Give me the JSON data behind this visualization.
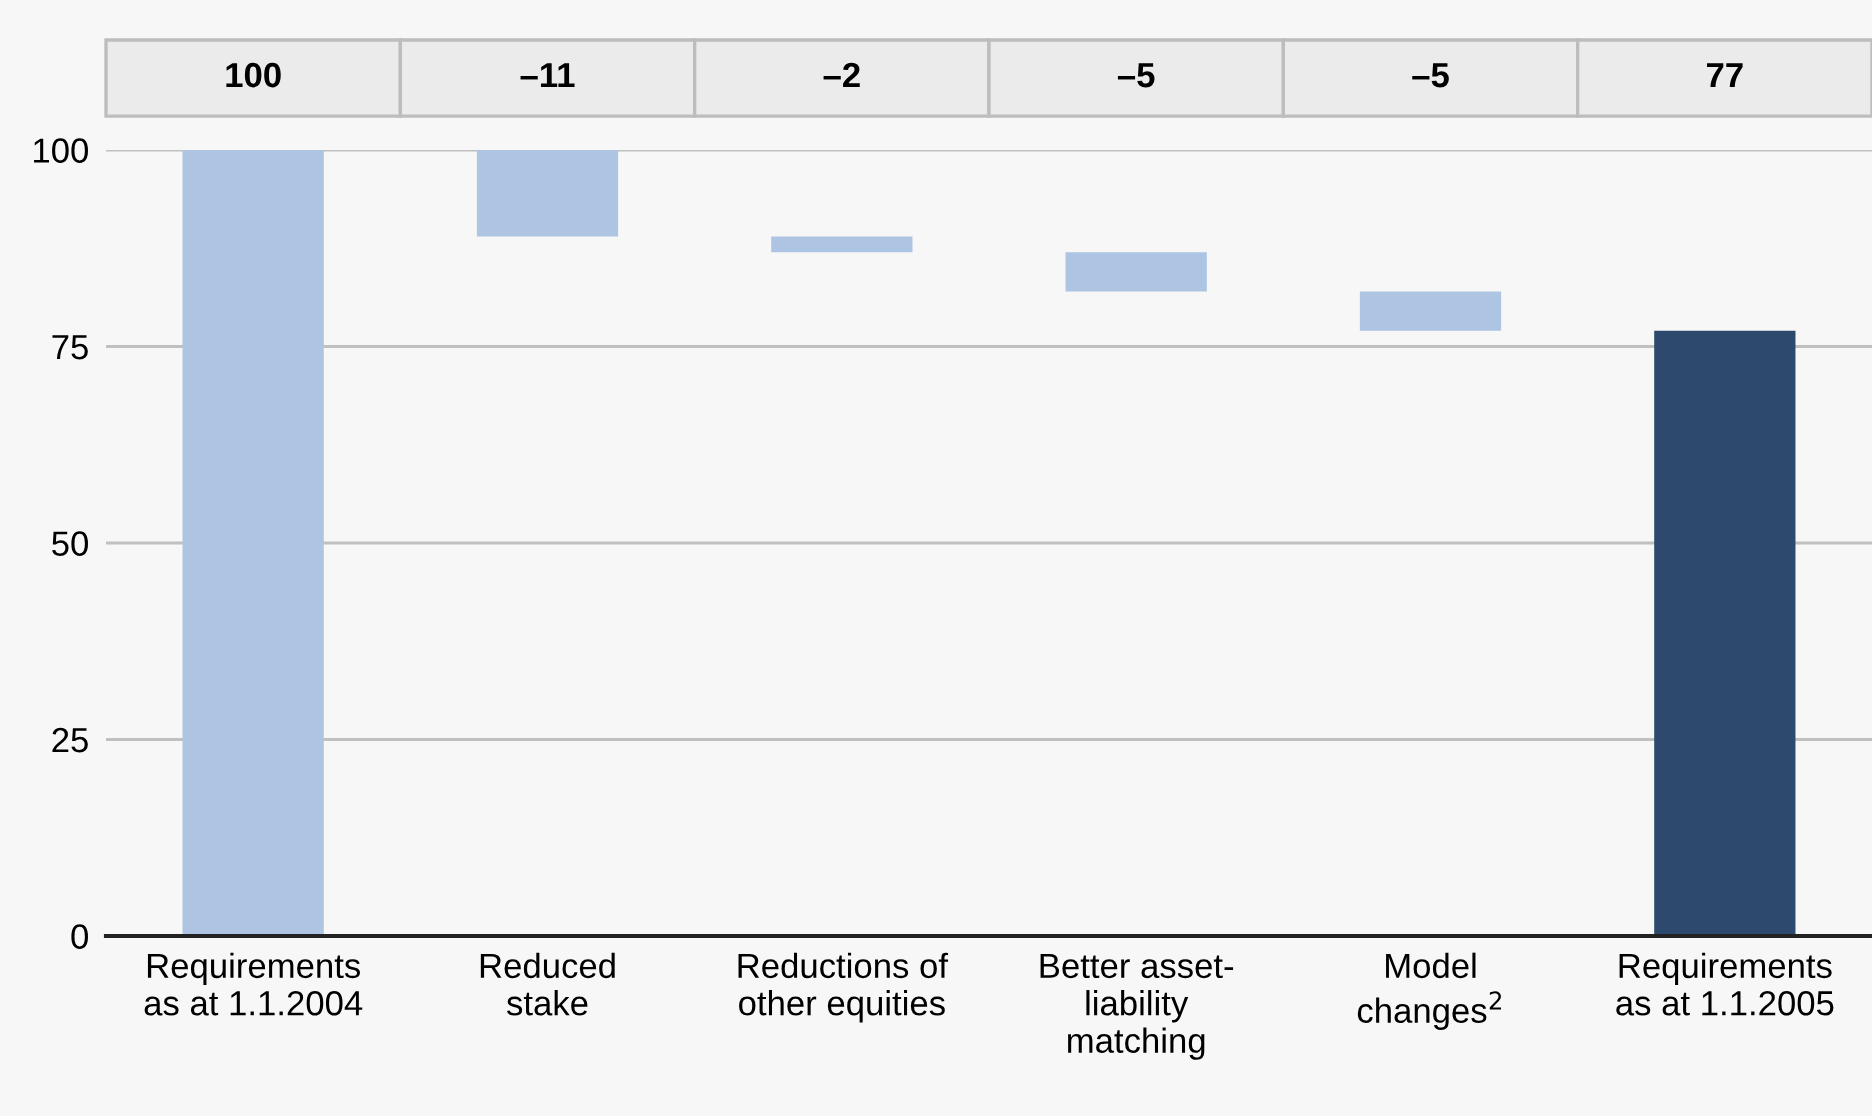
{
  "chart_data": {
    "type": "bar",
    "categories": [
      "Requirements\nas at 1.1.2004",
      "Reduced\nstake",
      "Reductions of\nother equities",
      "Better asset-\nliability\nmatching",
      "Model\nchanges$^{2}$",
      "Requirements\nas at 1.1.2005"
    ],
    "values": [
      100,
      -11,
      -2,
      -5,
      -5,
      77
    ],
    "base": [
      0,
      100,
      89,
      87,
      82,
      0
    ],
    "colors": [
      "#adc5e2",
      "#adc5e2",
      "#adc5e2",
      "#adc5e2",
      "#adc5e2",
      "#2d4a6e"
    ],
    "value_labels": [
      "100",
      "–11",
      "–2",
      "–5",
      "–5",
      "77"
    ],
    "ylim": [
      0,
      100
    ],
    "yticks": [
      0,
      25,
      50,
      75,
      100
    ],
    "grid": "y"
  }
}
